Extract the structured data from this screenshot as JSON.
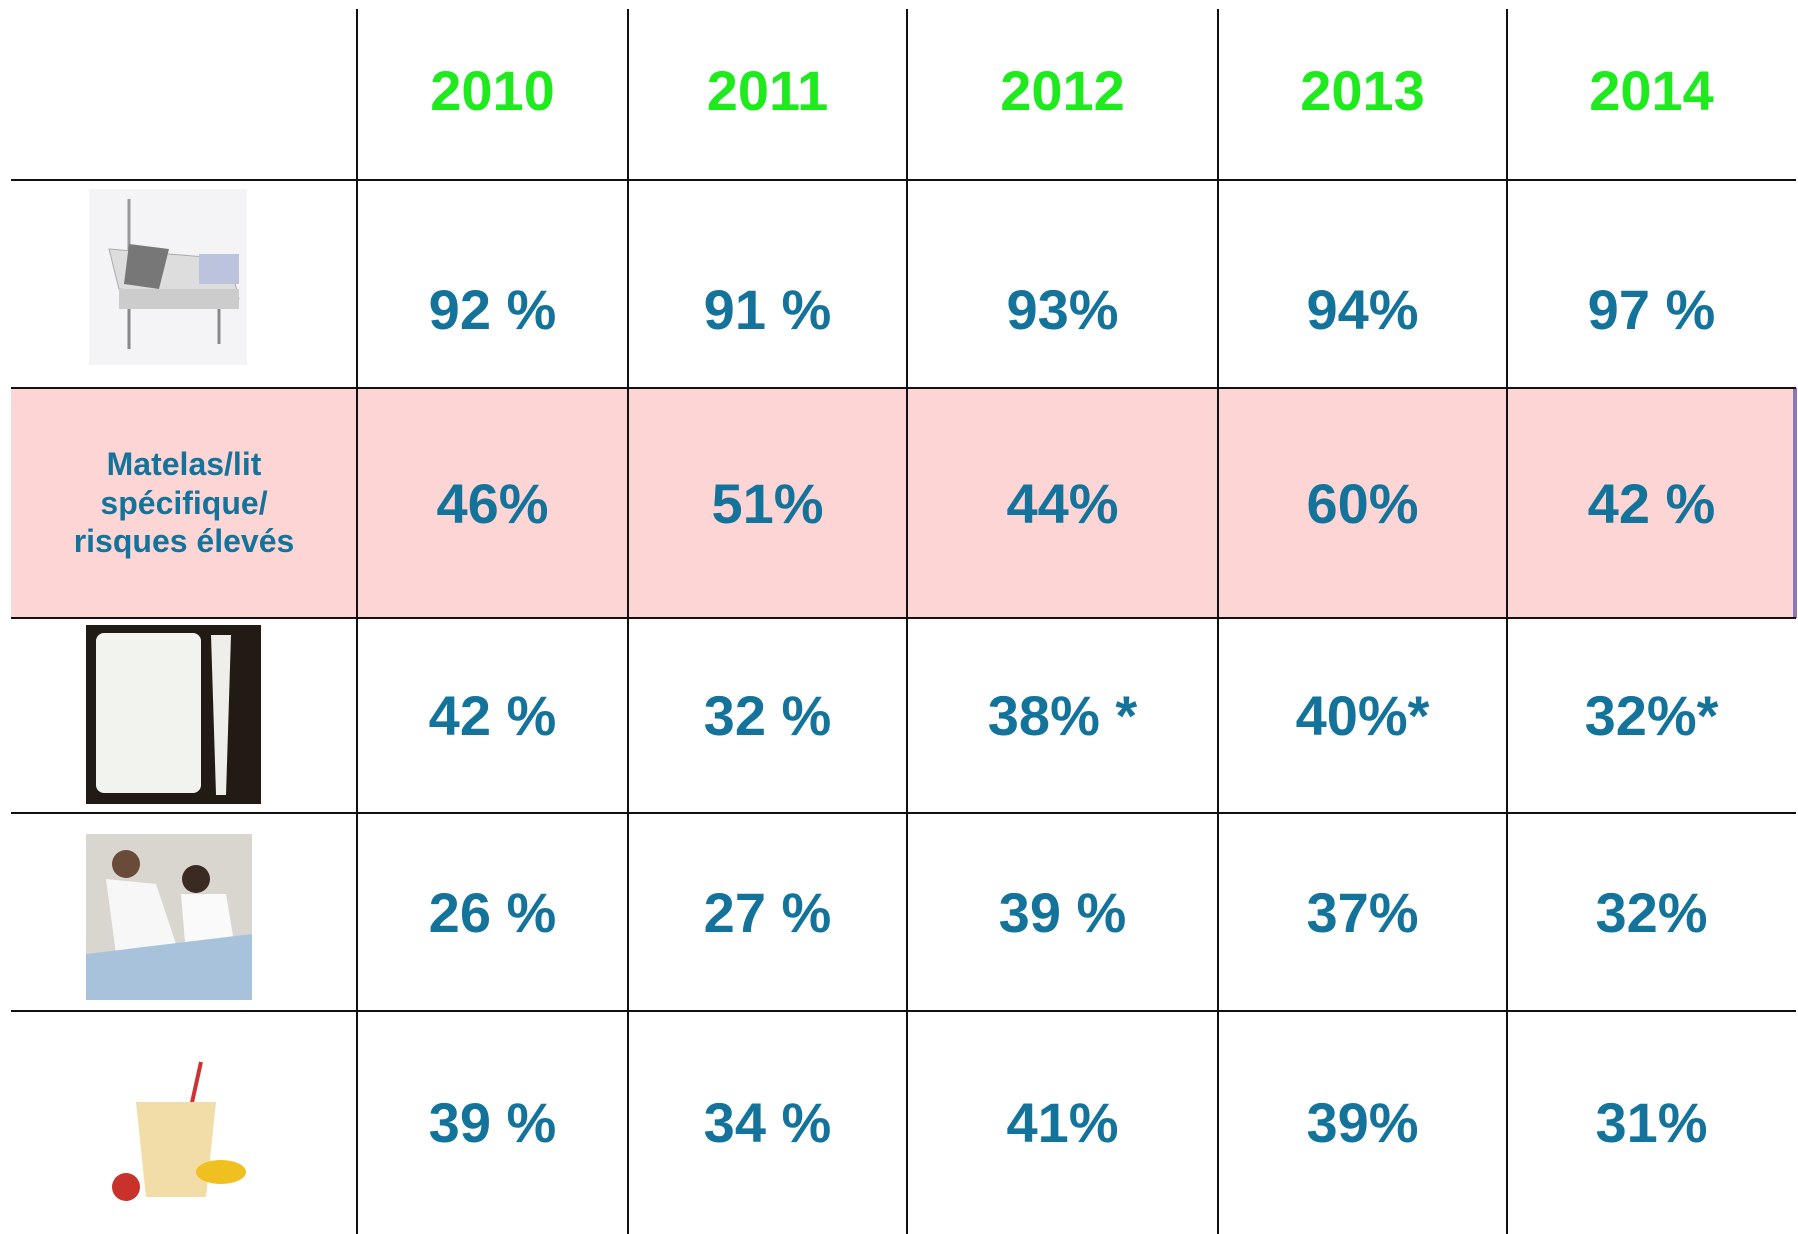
{
  "header": {
    "years": [
      "2010",
      "2011",
      "2012",
      "2013",
      "2014"
    ]
  },
  "rows": [
    {
      "values": [
        "92 %",
        "91 %",
        "93%",
        "94%",
        "97 %"
      ]
    },
    {
      "label": "Matelas/lit\nspécifique/\nrisques élevés",
      "values": [
        "46%",
        "51%",
        "44%",
        "60%",
        "42 %"
      ]
    },
    {
      "values": [
        "42 %",
        "32 %",
        "38% *",
        "40%*",
        "32%*"
      ]
    },
    {
      "values": [
        "26 %",
        "27 %",
        "39 %",
        "37%",
        "32%"
      ]
    },
    {
      "values": [
        "39 %",
        "34 %",
        "41%",
        "39%",
        "31%"
      ]
    }
  ]
}
